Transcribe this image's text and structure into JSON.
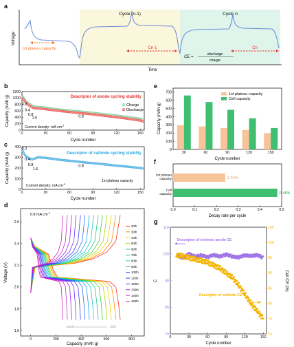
{
  "panels": {
    "a": {
      "label": "a",
      "ylabel": "Voltage",
      "xlabel": "Time",
      "cycle_prev": "Cycle (n-1)",
      "cycle_n": "Cycle n",
      "plateau": "1st plateau capacity",
      "cn1": "Cn-1",
      "cn": "Cn",
      "ce_lhs": "CE =",
      "ce_num": "discharge",
      "ce_den": "charge",
      "ce_sub": "cycle n",
      "colors": {
        "prev": "#fbf7dc",
        "n": "#dff5ec",
        "curve": "#6a8fd6",
        "arrow": "#f36f21",
        "red": "#e5322d"
      }
    },
    "b": {
      "label": "b",
      "title": "Descriptor of anode cycling stability",
      "title_color": "#e5322d",
      "note": "Current density: mA cm",
      "note_sup": "-2"
    },
    "c": {
      "label": "c",
      "title": "Descriptor of cathode cycling stability",
      "title_color": "#29a8e0",
      "note": "Current density: mA cm",
      "note_sup": "-2",
      "plateau": "1st plateau capacity"
    },
    "d": {
      "label": "d",
      "note": "0.8 mA cm",
      "note_sup": "-2",
      "arrow_left": "150th",
      "arrow_right": "20th"
    },
    "e": {
      "label": "e"
    },
    "f": {
      "label": "f"
    },
    "g": {
      "label": "g",
      "desc1": "Descriptor of intrinsic anode CE",
      "desc2": "Descriptor of cathode CE"
    }
  },
  "chart_data": [
    {
      "panel": "b",
      "type": "scatter",
      "xlabel": "Cycle number",
      "ylabel": "Capacity (mAh g",
      "xlim": [
        0,
        155
      ],
      "ylim": [
        0,
        1200
      ],
      "xticks": [
        0,
        30,
        60,
        90,
        120,
        150
      ],
      "yticks": [
        0,
        200,
        400,
        600,
        800,
        1000,
        1200
      ],
      "rate_labels": [
        {
          "text": "0.2",
          "x": 3,
          "y": 770
        },
        {
          "text": "0.4",
          "x": 7,
          "y": 590
        },
        {
          "text": "0.8",
          "x": 11,
          "y": 450
        },
        {
          "text": "1.6",
          "x": 16,
          "y": 350
        },
        {
          "text": "0.8",
          "x": 75,
          "y": 400
        }
      ],
      "series": [
        {
          "name": "Charge",
          "color": "#3cb371",
          "fill": "#d8f1de",
          "x": [
            1,
            3,
            5,
            7,
            9,
            11,
            13,
            15,
            20,
            30,
            40,
            50,
            60,
            70,
            80,
            90,
            100,
            110,
            120,
            130,
            140,
            150,
            153
          ],
          "y": [
            1050,
            960,
            900,
            860,
            820,
            790,
            760,
            730,
            720,
            700,
            660,
            630,
            610,
            585,
            560,
            535,
            505,
            480,
            450,
            420,
            385,
            355,
            330
          ]
        },
        {
          "name": "Discharge",
          "color": "#e5322d",
          "fill": "#f7a29b",
          "x": [
            1,
            3,
            5,
            7,
            9,
            11,
            13,
            15,
            20,
            30,
            40,
            50,
            60,
            70,
            80,
            90,
            100,
            110,
            120,
            130,
            140,
            150,
            153
          ],
          "y": [
            1000,
            910,
            850,
            810,
            770,
            740,
            710,
            680,
            680,
            650,
            620,
            590,
            565,
            540,
            515,
            490,
            460,
            430,
            400,
            370,
            335,
            300,
            270
          ]
        }
      ]
    },
    {
      "panel": "c",
      "type": "scatter",
      "xlabel": "Cycle number",
      "ylabel": "Capacity (mAh g",
      "xlim": [
        0,
        155
      ],
      "ylim": [
        0,
        400
      ],
      "xticks": [
        0,
        30,
        60,
        90,
        120,
        150
      ],
      "yticks": [
        0,
        100,
        200,
        300,
        400
      ],
      "rate_labels": [
        {
          "text": "0.2",
          "x": 3,
          "y": 370
        },
        {
          "text": "0.4",
          "x": 7,
          "y": 270
        },
        {
          "text": "0.8",
          "x": 11,
          "y": 220
        },
        {
          "text": "1.6",
          "x": 17,
          "y": 180
        },
        {
          "text": "0.8",
          "x": 75,
          "y": 210
        }
      ],
      "series": [
        {
          "name": "1st plateau capacity",
          "color": "#2e9ad6",
          "fill": "#8fd3f4",
          "x": [
            1,
            3,
            5,
            7,
            9,
            11,
            13,
            15,
            20,
            30,
            40,
            50,
            60,
            70,
            80,
            90,
            100,
            110,
            120,
            130,
            140,
            150,
            153
          ],
          "y": [
            360,
            330,
            310,
            300,
            290,
            285,
            280,
            285,
            300,
            295,
            285,
            275,
            268,
            260,
            252,
            245,
            238,
            230,
            222,
            215,
            208,
            200,
            196
          ]
        }
      ]
    },
    {
      "panel": "d",
      "type": "line",
      "xlabel": "Capacity (mAh g",
      "ylabel": "Voltage (V)",
      "xlim": [
        -80,
        900
      ],
      "ylim": [
        1.55,
        2.72
      ],
      "xticks": [
        0,
        200,
        400,
        600,
        800
      ],
      "yticks": [
        1.6,
        1.8,
        2.0,
        2.2,
        2.4,
        2.6
      ],
      "series": [
        {
          "name": "20th",
          "color": "#ff2a2a",
          "cap": 710
        },
        {
          "name": "30th",
          "color": "#ff8c00",
          "cap": 675
        },
        {
          "name": "40th",
          "color": "#f2d000",
          "cap": 640
        },
        {
          "name": "50th",
          "color": "#b5d800",
          "cap": 605
        },
        {
          "name": "60th",
          "color": "#3fcf3f",
          "cap": 570
        },
        {
          "name": "70th",
          "color": "#18c98a",
          "cap": 535
        },
        {
          "name": "80th",
          "color": "#18c8c8",
          "cap": 500
        },
        {
          "name": "90th",
          "color": "#1aa6e8",
          "cap": 465
        },
        {
          "name": "100th",
          "color": "#2a6cf0",
          "cap": 430
        },
        {
          "name": "110th",
          "color": "#3a3af0",
          "cap": 395
        },
        {
          "name": "120th",
          "color": "#6a2ef0",
          "cap": 360
        },
        {
          "name": "130th",
          "color": "#9a2ae8",
          "cap": 325
        },
        {
          "name": "140th",
          "color": "#c82ad8",
          "cap": 290
        },
        {
          "name": "150th",
          "color": "#e020b8",
          "cap": 255
        }
      ]
    },
    {
      "panel": "e",
      "type": "bar",
      "xlabel": "Cycle number",
      "ylabel": "Capacity (mAh g",
      "categories": [
        "30",
        "60",
        "90",
        "120",
        "150"
      ],
      "ylim": [
        0,
        750
      ],
      "yticks": [
        0,
        100,
        200,
        300,
        400,
        500,
        600,
        700
      ],
      "series": [
        {
          "name": "1st plateau capacity",
          "color": "#f7c49a",
          "values": [
            295,
            280,
            262,
            238,
            200
          ]
        },
        {
          "name": "Cell capacity",
          "color": "#3fbf6f",
          "values": [
            660,
            580,
            485,
            380,
            262
          ]
        }
      ]
    },
    {
      "panel": "f",
      "type": "bar",
      "xlabel": "Decay rate per cycle",
      "xlim": [
        0,
        0.5
      ],
      "xticks": [
        0.0,
        0.1,
        0.2,
        0.3,
        0.4,
        0.5
      ],
      "categories": [
        "1st plateau capacity",
        "Cell capacity"
      ],
      "values": [
        0.24,
        0.48
      ],
      "value_labels": [
        "0.24%",
        "0.48%"
      ],
      "colors": [
        "#f7c49a",
        "#3fbf6f"
      ],
      "label_colors": [
        "#f39a3a",
        "#2aa85a"
      ]
    },
    {
      "panel": "g",
      "type": "scatter",
      "xlabel": "Cycle number",
      "ylabel": "C",
      "ylabel2": "Cell CE (%)",
      "xlim": [
        0,
        155
      ],
      "ylim": [
        70,
        110
      ],
      "y2lim": [
        70,
        105
      ],
      "xticks": [
        0,
        30,
        60,
        90,
        120,
        150
      ],
      "yticks": [
        70,
        80,
        90,
        100,
        110
      ],
      "y2ticks": [
        70,
        75,
        80,
        85,
        90,
        95,
        100,
        105
      ],
      "series": [
        {
          "name": "Descriptor of intrinsic anode CE",
          "color": "#a074e8",
          "axis": "left",
          "x": [
            10,
            20,
            30,
            40,
            50,
            60,
            70,
            80,
            90,
            100,
            110,
            120,
            130,
            140,
            150
          ],
          "y": [
            99.5,
            98.5,
            100,
            99,
            99.5,
            98.8,
            99.6,
            99,
            99.8,
            99,
            98.7,
            99.5,
            99.2,
            99.6,
            98.5
          ]
        },
        {
          "name": "Descriptor of cathode CE",
          "color": "#f4b400",
          "axis": "right",
          "x": [
            10,
            20,
            30,
            40,
            50,
            60,
            70,
            80,
            90,
            100,
            110,
            120,
            130,
            140,
            150
          ],
          "y": [
            96,
            95.5,
            95,
            94.5,
            94,
            93.5,
            92.5,
            91.5,
            90,
            88.5,
            86,
            83,
            80,
            77.5,
            75
          ]
        }
      ]
    }
  ]
}
